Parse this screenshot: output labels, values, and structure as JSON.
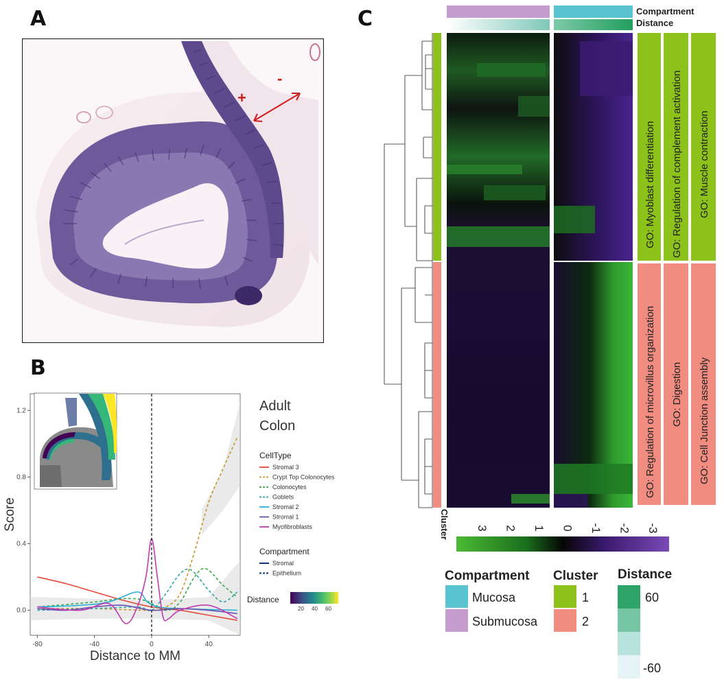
{
  "panels": {
    "a": "A",
    "b": "B",
    "c": "C"
  },
  "panel_a": {
    "marks": {
      "plus": "+",
      "minus": "-"
    }
  },
  "panel_b": {
    "title_line1": "Adult",
    "title_line2": "Colon",
    "celltype_title": "CellType",
    "compartment_title": "Compartment",
    "distance_label": "Distance",
    "distance_ticks": [
      "20",
      "40",
      "60"
    ]
  },
  "panel_c": {
    "top_labels": {
      "compartment": "Compartment",
      "distance": "Distance"
    },
    "cluster_axis_label": "Cluster",
    "go_terms": {
      "c1": [
        "GO: Myoblast differentiation",
        "GO: Regulation of complement activation",
        "GO: Muscle contraction"
      ],
      "c2": [
        "GO: Regulation of microvillus organization",
        "GO: Digestion",
        "GO: Cell Junction assembly"
      ]
    },
    "colorbar_ticks": [
      "3",
      "2",
      "1",
      "0",
      "-1",
      "-2",
      "-3"
    ],
    "legend": {
      "compartment_title": "Compartment",
      "compartment_items": [
        {
          "label": "Mucosa",
          "color": "#5bc4d1"
        },
        {
          "label": "Submucosa",
          "color": "#c49ccd"
        }
      ],
      "cluster_title": "Cluster",
      "cluster_items": [
        {
          "label": "1",
          "color": "#8cc21a"
        },
        {
          "label": "2",
          "color": "#f08c80"
        }
      ],
      "distance_title": "Distance",
      "distance_labels": {
        "high": "60",
        "low": "-60"
      }
    }
  },
  "chart_data": {
    "type": "line",
    "title": "Adult Colon",
    "xlabel": "Distance to MM",
    "ylabel": "Score",
    "xlim": [
      -85,
      62
    ],
    "ylim": [
      -0.15,
      1.3
    ],
    "xticks": [
      -80,
      -40,
      0,
      40
    ],
    "yticks": [
      0.0,
      0.4,
      0.8,
      1.2
    ],
    "xtick_labels": [
      "-80",
      "-40",
      "0",
      "40"
    ],
    "ytick_labels": [
      "0.0",
      "0.4",
      "0.8",
      "1.2"
    ],
    "vline_x": 0,
    "series": [
      {
        "name": "Stromal 3",
        "color": "#e8483a",
        "dash": false,
        "points": [
          [
            -80,
            0.2
          ],
          [
            -60,
            0.16
          ],
          [
            -40,
            0.11
          ],
          [
            -20,
            0.06
          ],
          [
            0,
            0.02
          ],
          [
            20,
            0.0
          ],
          [
            40,
            -0.03
          ],
          [
            60,
            -0.06
          ]
        ]
      },
      {
        "name": "Crypt Top Colonocytes",
        "color": "#c8962c",
        "dash": true,
        "points": [
          [
            -80,
            0.01
          ],
          [
            -40,
            0.01
          ],
          [
            0,
            0.0
          ],
          [
            10,
            0.02
          ],
          [
            20,
            0.1
          ],
          [
            30,
            0.35
          ],
          [
            40,
            0.65
          ],
          [
            50,
            0.85
          ],
          [
            60,
            1.04
          ]
        ]
      },
      {
        "name": "Colonocytes",
        "color": "#3aa84a",
        "dash": true,
        "points": [
          [
            -80,
            0.02
          ],
          [
            -40,
            0.05
          ],
          [
            -20,
            0.07
          ],
          [
            -5,
            0.06
          ],
          [
            10,
            0.0
          ],
          [
            20,
            0.05
          ],
          [
            30,
            0.2
          ],
          [
            38,
            0.25
          ],
          [
            50,
            0.15
          ],
          [
            60,
            0.08
          ]
        ]
      },
      {
        "name": "Goblets",
        "color": "#2aa6a0",
        "dash": true,
        "points": [
          [
            -80,
            0.0
          ],
          [
            -40,
            0.01
          ],
          [
            -10,
            0.02
          ],
          [
            0,
            0.0
          ],
          [
            10,
            0.1
          ],
          [
            20,
            0.22
          ],
          [
            28,
            0.24
          ],
          [
            40,
            0.12
          ],
          [
            50,
            0.05
          ],
          [
            60,
            0.11
          ]
        ]
      },
      {
        "name": "Stromal 2",
        "color": "#2ab0d8",
        "dash": false,
        "points": [
          [
            -80,
            0.02
          ],
          [
            -50,
            0.03
          ],
          [
            -30,
            0.05
          ],
          [
            -10,
            0.11
          ],
          [
            -3,
            0.05
          ],
          [
            5,
            0.02
          ],
          [
            20,
            0.01
          ],
          [
            60,
            0.0
          ]
        ]
      },
      {
        "name": "Stromal 1",
        "color": "#6a4fb0",
        "dash": false,
        "points": [
          [
            -80,
            0.01
          ],
          [
            -60,
            0.0
          ],
          [
            -40,
            0.02
          ],
          [
            -20,
            0.03
          ],
          [
            0,
            0.0
          ],
          [
            20,
            0.01
          ],
          [
            40,
            0.0
          ],
          [
            60,
            -0.02
          ]
        ]
      },
      {
        "name": "Myofibroblasts",
        "color": "#c03ab0",
        "dash": false,
        "points": [
          [
            -80,
            0.02
          ],
          [
            -50,
            0.0
          ],
          [
            -30,
            0.04
          ],
          [
            -18,
            -0.08
          ],
          [
            -10,
            0.02
          ],
          [
            -4,
            0.2
          ],
          [
            0,
            0.43
          ],
          [
            4,
            0.2
          ],
          [
            8,
            -0.04
          ],
          [
            12,
            -0.05
          ],
          [
            20,
            0.0
          ],
          [
            40,
            0.03
          ],
          [
            60,
            -0.05
          ]
        ]
      }
    ],
    "compartment_legend": [
      {
        "name": "Stromal",
        "color": "#16327a",
        "dash": false
      },
      {
        "name": "Epithelium",
        "color": "#16327a",
        "dash": true
      }
    ]
  }
}
